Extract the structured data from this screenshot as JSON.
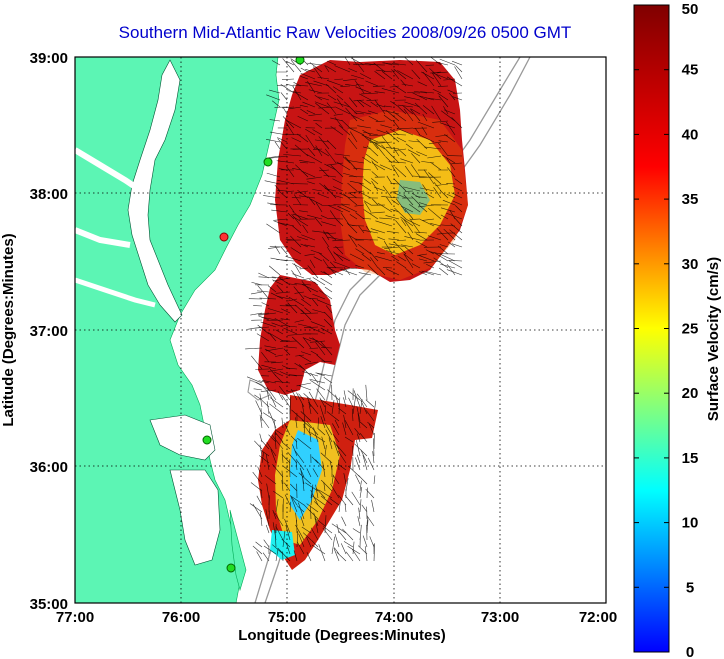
{
  "chart_data": {
    "type": "heatmap",
    "title": "Southern Mid-Atlantic Raw Velocities 2008/09/26 0500 GMT",
    "xlabel": "Longitude (Degrees:Minutes)",
    "ylabel": "Latitude (Degrees:Minutes)",
    "xlim": [
      -77,
      -72
    ],
    "ylim": [
      35,
      39
    ],
    "x_ticks": [
      "77:00",
      "76:00",
      "75:00",
      "74:00",
      "73:00",
      "72:00"
    ],
    "y_ticks": [
      "35:00",
      "36:00",
      "37:00",
      "38:00",
      "39:00"
    ],
    "grid": true,
    "colorbar": {
      "label": "Surface Velocity (cm/s)",
      "range": [
        0,
        50
      ],
      "ticks": [
        "0",
        "5",
        "10",
        "15",
        "20",
        "25",
        "30",
        "35",
        "40",
        "45",
        "50"
      ]
    },
    "regions": [
      {
        "lon": [
          -75.1,
          -73.3
        ],
        "lat": [
          37.5,
          38.85
        ],
        "speed": "high (40-50)"
      },
      {
        "lon": [
          -73.9,
          -73.5
        ],
        "lat": [
          37.6,
          38.2
        ],
        "speed": "low core (10-25)"
      },
      {
        "lon": [
          -75.2,
          -74.6
        ],
        "lat": [
          36.6,
          37.3
        ],
        "speed": "high (40-50)"
      },
      {
        "lon": [
          -75.3,
          -74.3
        ],
        "lat": [
          35.2,
          36.4
        ],
        "speed": "mixed (10-45)"
      }
    ]
  },
  "colors": {
    "land": "#5cf5b4",
    "title": "#0000cc"
  }
}
